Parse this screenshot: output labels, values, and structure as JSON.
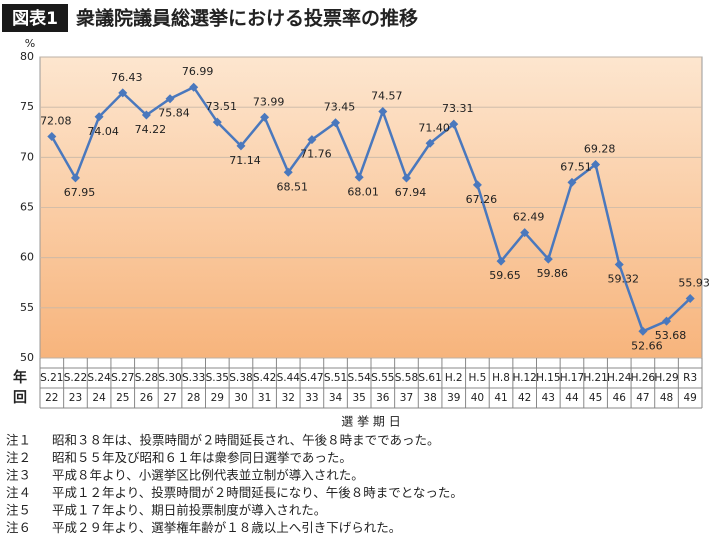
{
  "chart_data": {
    "type": "line",
    "badge": "図表1",
    "title": "衆議院議員総選挙における投票率の推移",
    "y_unit": "%",
    "row_label_year": "年",
    "row_label_round": "回",
    "x_label": "選 挙 期 日",
    "categories": [
      "S.21",
      "S.22",
      "S.24",
      "S.27",
      "S.28",
      "S.30",
      "S.33",
      "S.35",
      "S.38",
      "S.42",
      "S.44",
      "S.47",
      "S.51",
      "S.54",
      "S.55",
      "S.58",
      "S.61",
      "H.2",
      "H.5",
      "H.8",
      "H.12",
      "H.15",
      "H.17",
      "H.21",
      "H.24",
      "H.26",
      "H.29",
      "R3"
    ],
    "rounds": [
      "22",
      "23",
      "24",
      "25",
      "26",
      "27",
      "28",
      "29",
      "30",
      "31",
      "32",
      "33",
      "34",
      "35",
      "36",
      "37",
      "38",
      "39",
      "40",
      "41",
      "42",
      "43",
      "44",
      "45",
      "46",
      "47",
      "48",
      "49"
    ],
    "series": [
      {
        "name": "投票率",
        "color": "#4a78bd",
        "values": [
          72.08,
          67.95,
          74.04,
          76.43,
          74.22,
          75.84,
          76.99,
          73.51,
          71.14,
          73.99,
          68.51,
          71.76,
          73.45,
          68.01,
          74.57,
          67.94,
          71.4,
          73.31,
          67.26,
          59.65,
          62.49,
          59.86,
          67.51,
          69.28,
          59.32,
          52.66,
          53.68,
          55.93
        ],
        "value_labels": [
          "72.08",
          "67.95",
          "74.04",
          "76.43",
          "74.22",
          "75.84",
          "76.99",
          "73.51",
          "71.14",
          "73.99",
          "68.51",
          "71.76",
          "73.45",
          "68.01",
          "74.57",
          "67.94",
          "71.40",
          "73.31",
          "67.26",
          "59.65",
          "62.49",
          "59.86",
          "67.51",
          "69.28",
          "59.32",
          "52.66",
          "53.68",
          "55.93"
        ]
      }
    ],
    "ylim": [
      50,
      80
    ],
    "yticks": [
      50,
      55,
      60,
      65,
      70,
      75,
      80
    ],
    "grid": true,
    "notes": [
      {
        "label": "注１",
        "text": "昭和３８年は、投票時間が２時間延長され、午後８時までであった。"
      },
      {
        "label": "注２",
        "text": "昭和５５年及び昭和６１年は衆参同日選挙であった。"
      },
      {
        "label": "注３",
        "text": "平成８年より、小選挙区比例代表並立制が導入された。"
      },
      {
        "label": "注４",
        "text": "平成１２年より、投票時間が２時間延長になり、午後８時までとなった。"
      },
      {
        "label": "注５",
        "text": "平成１７年より、期日前投票制度が導入された。"
      },
      {
        "label": "注６",
        "text": "平成２９年より、選挙権年齢が１８歳以上へ引き下げられた。"
      }
    ]
  }
}
